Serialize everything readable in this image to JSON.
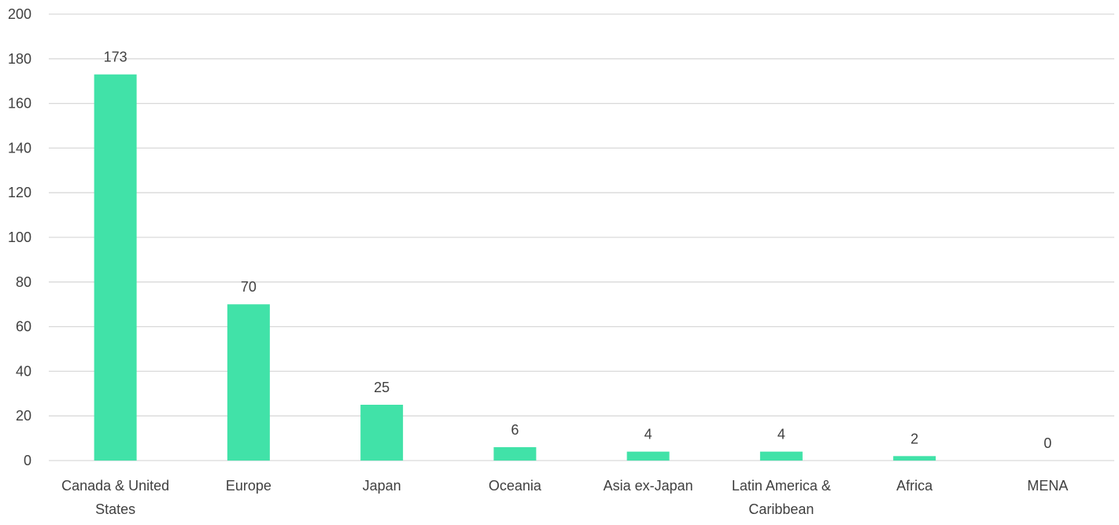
{
  "chart_data": {
    "type": "bar",
    "categories": [
      [
        "Canada & United",
        "States"
      ],
      [
        "Europe"
      ],
      [
        "Japan"
      ],
      [
        "Oceania"
      ],
      [
        "Asia ex-Japan"
      ],
      [
        "Latin America &",
        "Caribbean"
      ],
      [
        "Africa"
      ],
      [
        "MENA"
      ]
    ],
    "values": [
      173,
      70,
      25,
      6,
      4,
      4,
      2,
      0
    ],
    "title": "",
    "xlabel": "",
    "ylabel": "",
    "ylim": [
      0,
      200
    ],
    "yticks": [
      0,
      20,
      40,
      60,
      80,
      100,
      120,
      140,
      160,
      180,
      200
    ],
    "grid": true,
    "legend": "none",
    "bar_color": "#41E2A8",
    "grid_color": "#D9D9D9"
  }
}
